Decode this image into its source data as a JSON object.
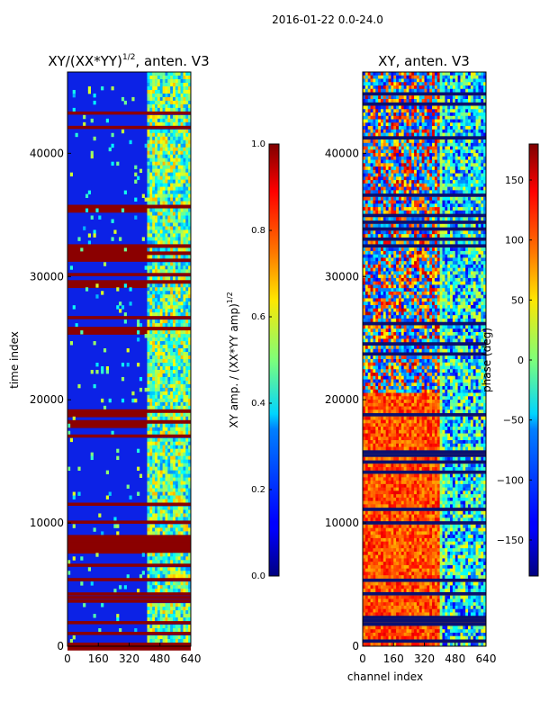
{
  "suptitle": "2016-01-22 0.0-24.0",
  "chart_data": [
    {
      "type": "heatmap",
      "title_main": "XY/(XX*YY)",
      "title_sup": "1/2",
      "title_tail": ", anten. V3",
      "xlabel": "",
      "ylabel": "time index",
      "x_ticks": [
        0,
        160,
        320,
        480,
        640
      ],
      "y_ticks": [
        0,
        10000,
        20000,
        30000,
        40000
      ],
      "xlim": [
        0,
        640
      ],
      "ylim": [
        0,
        46600
      ],
      "colorbar": {
        "label_main": "XY amp. / (XX*YY amp)",
        "label_sup": "1/2",
        "ticks": [
          "0.0",
          "0.2",
          "0.4",
          "0.6",
          "0.8",
          "1.0"
        ],
        "range": [
          0.0,
          1.0
        ]
      }
    },
    {
      "type": "heatmap",
      "title": "XY, anten. V3",
      "xlabel": "channel index",
      "ylabel": "",
      "x_ticks": [
        0,
        160,
        320,
        480,
        640
      ],
      "y_ticks": [
        0,
        10000,
        20000,
        30000,
        40000
      ],
      "xlim": [
        0,
        640
      ],
      "ylim": [
        0,
        46600
      ],
      "colorbar": {
        "label": "phase (deg)",
        "ticks": [
          "150",
          "100",
          "50",
          "0",
          "−50",
          "−100",
          "−150"
        ],
        "range": [
          -180,
          180
        ]
      }
    }
  ]
}
